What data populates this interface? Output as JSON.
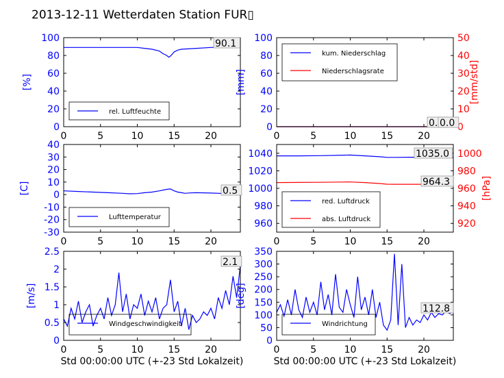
{
  "title": "2013-12-11 Wetterdaten Station FUR▯",
  "colors": {
    "primary_axis": "#0000ff",
    "secondary_axis": "#ff0000",
    "line_blue": "#0000ff",
    "line_red": "#ff0000",
    "frame": "#000000",
    "value_box_bg": "#eeeeee",
    "value_box_border": "#999999"
  },
  "chart_data": [
    {
      "type": "line",
      "ylabel": "[%]",
      "xlim": [
        0,
        24
      ],
      "ylim": [
        0,
        100
      ],
      "x_ticks": [
        0,
        5,
        10,
        15,
        20
      ],
      "y_ticks": [
        0,
        20,
        40,
        60,
        80,
        100
      ],
      "legend": {
        "position": "lower-left",
        "entries": [
          "rel. Luftfeuchte"
        ]
      },
      "current_value": "90.1",
      "series": [
        {
          "name": "rel. Luftfeuchte",
          "color": "#0000ff",
          "x": [
            0,
            2,
            4,
            6,
            8,
            10,
            11,
            12,
            13,
            13.5,
            14,
            14.3,
            14.6,
            15,
            15.5,
            16,
            18,
            20,
            22,
            24
          ],
          "y": [
            89,
            89,
            89,
            89,
            89,
            89,
            88,
            87,
            85,
            82,
            80,
            78,
            80,
            84,
            86,
            87,
            88,
            89,
            89.5,
            90.1
          ]
        }
      ]
    },
    {
      "type": "line",
      "ylabel": "[mm]",
      "ylabel_right": "[mm/std]",
      "xlim": [
        0,
        24
      ],
      "ylim": [
        0,
        100
      ],
      "ylim_right": [
        0,
        50
      ],
      "x_ticks": [
        0,
        5,
        10,
        15,
        20
      ],
      "y_ticks": [
        0,
        20,
        40,
        60,
        80,
        100
      ],
      "y_ticks_right": [
        0,
        10,
        20,
        30,
        40,
        50
      ],
      "legend": {
        "position": "upper-left",
        "entries": [
          "kum. Niederschlag",
          "Niederschlagsrate"
        ]
      },
      "current_values": [
        "0.0",
        "0.0"
      ],
      "series": [
        {
          "name": "kum. Niederschlag",
          "color": "#0000ff",
          "axis": "left",
          "x": [
            0,
            24
          ],
          "y": [
            0,
            0
          ]
        },
        {
          "name": "Niederschlagsrate",
          "color": "#ff0000",
          "axis": "right",
          "x": [
            0,
            24
          ],
          "y": [
            0,
            0
          ]
        }
      ]
    },
    {
      "type": "line",
      "ylabel": "[C]",
      "xlim": [
        0,
        24
      ],
      "ylim": [
        -30,
        40
      ],
      "x_ticks": [
        0,
        5,
        10,
        15,
        20
      ],
      "y_ticks": [
        -30,
        -20,
        -10,
        0,
        10,
        20,
        30,
        40
      ],
      "legend": {
        "position": "lower-left",
        "entries": [
          "Lufttemperatur"
        ]
      },
      "current_value": "0.5",
      "series": [
        {
          "name": "Lufttemperatur",
          "color": "#0000ff",
          "x": [
            0,
            2,
            4,
            6,
            8,
            9,
            10,
            11,
            12,
            13,
            14,
            14.5,
            15,
            15.5,
            16,
            16.5,
            17,
            18,
            20,
            22,
            24
          ],
          "y": [
            3,
            2.5,
            2,
            1.5,
            1,
            0.6,
            0.8,
            1.5,
            2,
            3,
            4.2,
            4.5,
            3,
            2,
            1.5,
            1,
            1.3,
            1.5,
            1.2,
            0.8,
            0.5
          ]
        }
      ]
    },
    {
      "type": "line",
      "xlim": [
        0,
        24
      ],
      "ylim": [
        950,
        1050
      ],
      "ylim_right": [
        910,
        1010
      ],
      "ylabel_right": "[hPa]",
      "x_ticks": [
        0,
        5,
        10,
        15,
        20
      ],
      "y_ticks": [
        960,
        980,
        1000,
        1020,
        1040
      ],
      "y_ticks_right": [
        920,
        940,
        960,
        980,
        1000
      ],
      "legend": {
        "position": "lower-left",
        "entries": [
          "red. Luftdruck",
          "abs. Luftdruck"
        ]
      },
      "current_values": [
        "1035.0",
        "964.3"
      ],
      "series": [
        {
          "name": "red. Luftdruck",
          "color": "#0000ff",
          "axis": "left",
          "x": [
            0,
            3,
            6,
            9,
            10,
            12,
            14,
            15,
            16,
            18,
            20,
            22,
            24
          ],
          "y": [
            1037,
            1037,
            1037.3,
            1037.8,
            1038,
            1037,
            1036,
            1035.3,
            1035.3,
            1035.5,
            1035.5,
            1035.2,
            1035
          ]
        },
        {
          "name": "abs. Luftdruck",
          "color": "#ff0000",
          "axis": "right",
          "x": [
            0,
            3,
            6,
            9,
            10,
            12,
            14,
            15,
            16,
            18,
            20,
            22,
            24
          ],
          "y": [
            966.6,
            966.7,
            966.9,
            967.2,
            967.3,
            966.6,
            965.5,
            964.7,
            964.6,
            964.6,
            964.6,
            964.4,
            964.3
          ]
        }
      ]
    },
    {
      "type": "line",
      "ylabel": "[m/s]",
      "xlabel": "Std 00:00:00 UTC (+-23 Std Lokalzeit)",
      "xlim": [
        0,
        24
      ],
      "ylim": [
        0,
        2.5
      ],
      "x_ticks": [
        0,
        5,
        10,
        15,
        20
      ],
      "y_ticks": [
        0,
        0.5,
        1,
        1.5,
        2,
        2.5
      ],
      "legend": {
        "position": "lower-left",
        "entries": [
          "Windgeschwindigkeit"
        ]
      },
      "current_value": "2.1",
      "series": [
        {
          "name": "Windgeschwindigkeit",
          "color": "#0000ff",
          "x": [
            0,
            0.5,
            1,
            1.5,
            2,
            2.5,
            3,
            3.5,
            4,
            4.5,
            5,
            5.5,
            6,
            6.5,
            7,
            7.5,
            8,
            8.5,
            9,
            9.5,
            10,
            10.5,
            11,
            11.5,
            12,
            12.5,
            13,
            13.5,
            14,
            14.5,
            15,
            15.5,
            16,
            16.5,
            17,
            17.5,
            18,
            18.5,
            19,
            19.5,
            20,
            20.5,
            21,
            21.5,
            22,
            22.5,
            23,
            23.5,
            24
          ],
          "y": [
            0.6,
            0.4,
            0.9,
            0.6,
            1.1,
            0.5,
            0.8,
            1.0,
            0.4,
            0.7,
            0.9,
            0.6,
            1.2,
            0.7,
            1.0,
            1.9,
            0.8,
            1.3,
            0.6,
            1.0,
            0.9,
            1.3,
            0.7,
            1.1,
            0.8,
            1.2,
            0.6,
            0.9,
            1.0,
            1.7,
            0.8,
            1.1,
            0.4,
            0.9,
            0.3,
            0.7,
            0.5,
            0.6,
            0.8,
            0.7,
            0.9,
            0.6,
            1.2,
            0.9,
            1.4,
            1.0,
            1.8,
            1.2,
            2.1
          ]
        }
      ]
    },
    {
      "type": "line",
      "ylabel": "[deg]",
      "xlabel": "Std 00:00:00 UTC (+-23 Std Lokalzeit)",
      "xlim": [
        0,
        24
      ],
      "ylim": [
        0,
        350
      ],
      "x_ticks": [
        0,
        5,
        10,
        15,
        20
      ],
      "y_ticks": [
        0,
        50,
        100,
        150,
        200,
        250,
        300,
        350
      ],
      "legend": {
        "position": "lower-left",
        "entries": [
          "Windrichtung"
        ]
      },
      "current_value": "112.8",
      "series": [
        {
          "name": "Windrichtung",
          "color": "#0000ff",
          "x": [
            0,
            0.5,
            1,
            1.5,
            2,
            2.5,
            3,
            3.5,
            4,
            4.5,
            5,
            5.5,
            6,
            6.5,
            7,
            7.5,
            8,
            8.5,
            9,
            9.5,
            10,
            10.5,
            11,
            11.5,
            12,
            12.5,
            13,
            13.5,
            14,
            14.5,
            15,
            15.5,
            16,
            16.5,
            17,
            17.5,
            18,
            18.5,
            19,
            19.5,
            20,
            20.5,
            21,
            21.5,
            22,
            22.5,
            23,
            23.5,
            24
          ],
          "y": [
            110,
            140,
            95,
            160,
            100,
            200,
            120,
            90,
            170,
            110,
            150,
            100,
            230,
            120,
            180,
            100,
            260,
            130,
            110,
            200,
            140,
            90,
            250,
            120,
            170,
            100,
            200,
            90,
            150,
            60,
            40,
            80,
            340,
            60,
            300,
            50,
            90,
            60,
            80,
            70,
            100,
            80,
            110,
            90,
            105,
            100,
            115,
            105,
            112.8
          ]
        }
      ]
    }
  ]
}
